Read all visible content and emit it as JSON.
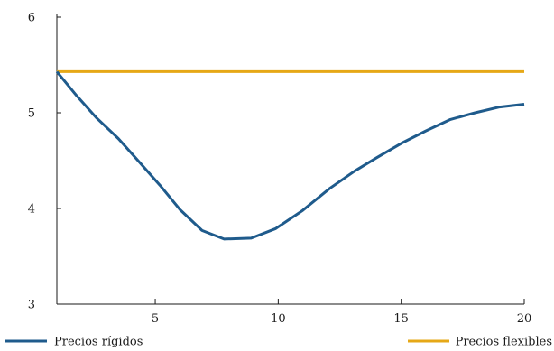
{
  "chart_data": {
    "type": "line",
    "title": "",
    "xlabel": "",
    "ylabel": "",
    "xlim": [
      1,
      20
    ],
    "ylim": [
      3,
      6
    ],
    "xticks": [
      5,
      10,
      15,
      20
    ],
    "yticks": [
      3,
      4,
      5,
      6
    ],
    "xtick_labels": [
      "5",
      "10",
      "15",
      "20"
    ],
    "ytick_labels": [
      "3",
      "4",
      "5",
      "6"
    ],
    "grid": false,
    "legend_position": "bottom",
    "series": [
      {
        "name": "Precios rígidos",
        "color": "#1f5b8c",
        "x": [
          1,
          1.8,
          2.6,
          3.5,
          4.3,
          5.2,
          6,
          6.9,
          7.8,
          8.9,
          9.9,
          11,
          12.1,
          13.1,
          14,
          15,
          16,
          17,
          18,
          19,
          20
        ],
        "y": [
          5.43,
          5.18,
          4.95,
          4.73,
          4.5,
          4.24,
          3.99,
          3.77,
          3.68,
          3.69,
          3.79,
          3.98,
          4.21,
          4.39,
          4.53,
          4.68,
          4.81,
          4.93,
          5.0,
          5.06,
          5.09
        ]
      },
      {
        "name": "Precios flexibles",
        "color": "#e6a817",
        "x": [
          1,
          20
        ],
        "y": [
          5.43,
          5.43
        ]
      }
    ]
  }
}
